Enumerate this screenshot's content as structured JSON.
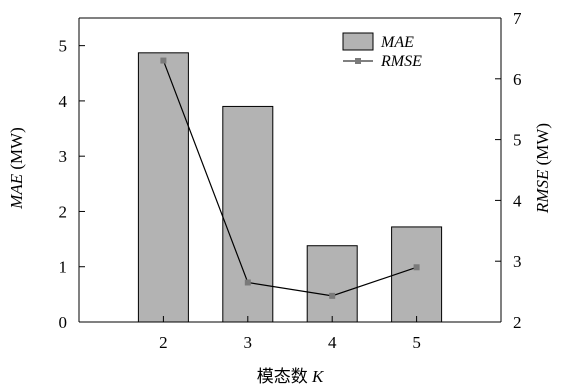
{
  "chart_data": {
    "type": "bar",
    "categories": [
      "2",
      "3",
      "4",
      "5"
    ],
    "series": [
      {
        "name": "MAE",
        "kind": "bar",
        "axis": "left",
        "values": [
          4.87,
          3.9,
          1.38,
          1.72
        ]
      },
      {
        "name": "RMSE",
        "kind": "line",
        "axis": "right",
        "values": [
          6.3,
          2.65,
          2.43,
          2.9
        ]
      }
    ],
    "xlabel": {
      "prefix": "模态数 ",
      "var": "K"
    },
    "ylabel_left": {
      "var": "MAE",
      "unit": " (MW)"
    },
    "ylabel_right": {
      "var": "RMSE",
      "unit": " (MW)"
    },
    "ylim_left": [
      0,
      5.5
    ],
    "ylim_right": [
      2,
      7
    ],
    "yticks_left": [
      0,
      1,
      2,
      3,
      4,
      5
    ],
    "yticks_right": [
      2,
      3,
      4,
      5,
      6,
      7
    ],
    "grid": false,
    "legend_position": "top-right",
    "colors": {
      "bar_fill": "#b3b3b3",
      "bar_stroke": "#000000",
      "line": "#000000",
      "marker": "#7a7a7a"
    }
  }
}
